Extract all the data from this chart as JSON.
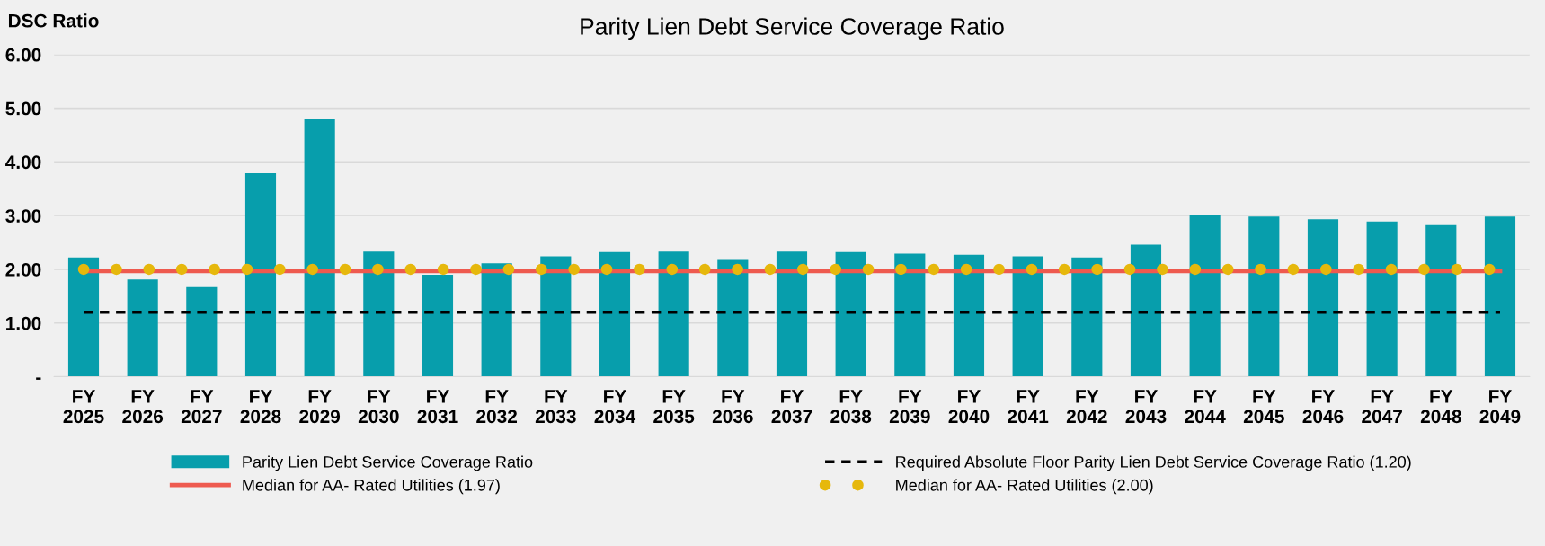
{
  "chart_data": {
    "type": "bar",
    "title": "Parity Lien Debt Service Coverage Ratio",
    "ylabel": "DSC Ratio",
    "categories": [
      "FY\n2025",
      "FY\n2026",
      "FY\n2027",
      "FY\n2028",
      "FY\n2029",
      "FY\n2030",
      "FY\n2031",
      "FY\n2032",
      "FY\n2033",
      "FY\n2034",
      "FY\n2035",
      "FY\n2036",
      "FY\n2037",
      "FY\n2038",
      "FY\n2039",
      "FY\n2040",
      "FY\n2041",
      "FY\n2042",
      "FY\n2043",
      "FY\n2044",
      "FY\n2045",
      "FY\n2046",
      "FY\n2047",
      "FY\n2048",
      "FY\n2049"
    ],
    "series": [
      {
        "name": "Parity Lien Debt Service Coverage Ratio",
        "color": "#079eac",
        "values": [
          2.22,
          1.81,
          1.67,
          3.79,
          4.81,
          2.33,
          1.9,
          2.11,
          2.24,
          2.32,
          2.33,
          2.19,
          2.33,
          2.32,
          2.29,
          2.27,
          2.24,
          2.22,
          2.46,
          3.02,
          2.98,
          2.93,
          2.89,
          2.84,
          2.98
        ]
      }
    ],
    "ref_lines": [
      {
        "axis": "y",
        "value": 1.97,
        "label": "Median for AA- Rated Utilities (1.97)",
        "color": "#ee5a4f",
        "line_style": "solid"
      },
      {
        "axis": "y",
        "value": 1.2,
        "label": "Required Absolute Floor Parity Lien Debt Service Coverage Ratio (1.20)",
        "color": "#000000",
        "line_style": "dashed"
      },
      {
        "axis": "y",
        "value": 2.0,
        "label": "Median for AA- Rated Utilities (2.00)",
        "color": "#e6b80c",
        "line_style": "dotted"
      }
    ],
    "ylim": [
      0,
      6
    ],
    "yticks": [
      {
        "value": 0,
        "label": "-"
      },
      {
        "value": 1,
        "label": "1.00"
      },
      {
        "value": 2,
        "label": "2.00"
      },
      {
        "value": 3,
        "label": "3.00"
      },
      {
        "value": 4,
        "label": "4.00"
      },
      {
        "value": 5,
        "label": "5.00"
      },
      {
        "value": 6,
        "label": "6.00"
      }
    ],
    "grid": "y",
    "legend": "bottom"
  }
}
